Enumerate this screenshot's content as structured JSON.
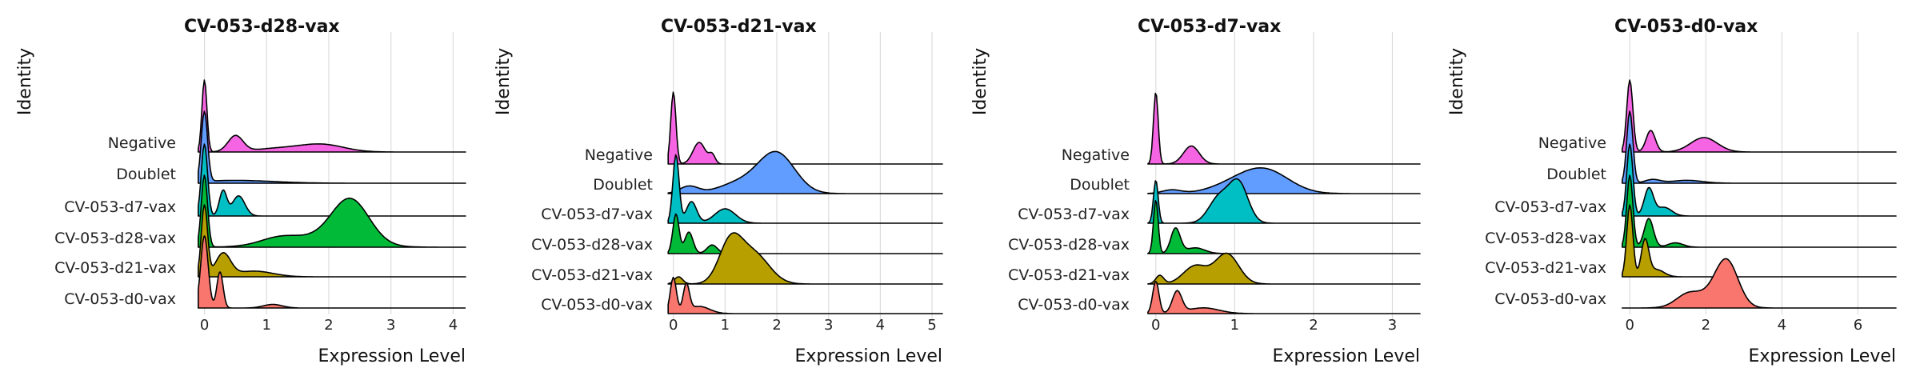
{
  "chart_data": [
    {
      "type": "area",
      "title": "CV-053-d28-vax",
      "ylabel": "Identity",
      "xlabel": "Expression Level",
      "xlim": [
        -0.2,
        4.2
      ],
      "xticks": [
        0,
        1,
        2,
        3,
        4
      ],
      "grid": true,
      "legend": "none",
      "categories": [
        "CV-053-d0-vax",
        "CV-053-d21-vax",
        "CV-053-d28-vax",
        "CV-053-d7-vax",
        "Doublet",
        "Negative"
      ],
      "colors": [
        "#F8766D",
        "#B79F00",
        "#00BA38",
        "#00BFC4",
        "#619CFF",
        "#F564E3"
      ],
      "series": [
        {
          "name": "CV-053-d0-vax",
          "peaks": [
            [
              0.0,
              0.06,
              1.0
            ],
            [
              0.25,
              0.05,
              0.5
            ],
            [
              1.1,
              0.15,
              0.05
            ]
          ],
          "range": [
            -0.1,
            1.5
          ]
        },
        {
          "name": "CV-053-d21-vax",
          "peaks": [
            [
              0.0,
              0.05,
              1.0
            ],
            [
              0.3,
              0.12,
              0.32
            ],
            [
              0.8,
              0.3,
              0.08
            ]
          ],
          "range": [
            -0.1,
            4.2
          ]
        },
        {
          "name": "CV-053-d28-vax",
          "peaks": [
            [
              0.0,
              0.05,
              1.0
            ],
            [
              1.2,
              0.3,
              0.08
            ],
            [
              2.35,
              0.3,
              0.6
            ],
            [
              1.8,
              0.6,
              0.12
            ]
          ],
          "range": [
            -0.1,
            4.2
          ]
        },
        {
          "name": "CV-053-d7-vax",
          "peaks": [
            [
              0.0,
              0.05,
              1.0
            ],
            [
              0.3,
              0.06,
              0.35
            ],
            [
              0.55,
              0.1,
              0.28
            ]
          ],
          "range": [
            -0.1,
            4.2
          ]
        },
        {
          "name": "Doublet",
          "peaks": [
            [
              0.0,
              0.05,
              1.0
            ],
            [
              0.5,
              0.6,
              0.04
            ]
          ],
          "range": [
            -0.1,
            4.2
          ]
        },
        {
          "name": "Negative",
          "peaks": [
            [
              0.0,
              0.04,
              1.0
            ],
            [
              0.5,
              0.12,
              0.22
            ],
            [
              1.9,
              0.35,
              0.1
            ],
            [
              1.2,
              0.4,
              0.05
            ]
          ],
          "range": [
            -0.1,
            4.2
          ]
        }
      ]
    },
    {
      "type": "area",
      "title": "CV-053-d21-vax",
      "ylabel": "Identity",
      "xlabel": "Expression Level",
      "xlim": [
        -0.15,
        5.2
      ],
      "xticks": [
        0,
        1,
        2,
        3,
        4,
        5
      ],
      "grid": true,
      "legend": "none",
      "categories": [
        "CV-053-d0-vax",
        "CV-053-d21-vax",
        "CV-053-d28-vax",
        "CV-053-d7-vax",
        "Doublet",
        "Negative"
      ],
      "colors": [
        "#F8766D",
        "#B79F00",
        "#00BA38",
        "#00BFC4",
        "#619CFF",
        "#F564E3"
      ],
      "series": [
        {
          "name": "CV-053-d0-vax",
          "peaks": [
            [
              0.0,
              0.06,
              0.5
            ],
            [
              0.25,
              0.06,
              0.38
            ],
            [
              0.5,
              0.2,
              0.1
            ]
          ],
          "range": [
            -0.1,
            5.2
          ]
        },
        {
          "name": "CV-053-d21-vax",
          "peaks": [
            [
              0.1,
              0.08,
              0.1
            ],
            [
              1.1,
              0.22,
              0.55
            ],
            [
              1.55,
              0.3,
              0.42
            ]
          ],
          "range": [
            -0.1,
            5.2
          ]
        },
        {
          "name": "CV-053-d28-vax",
          "peaks": [
            [
              0.05,
              0.06,
              0.55
            ],
            [
              0.3,
              0.08,
              0.3
            ],
            [
              0.75,
              0.1,
              0.12
            ]
          ],
          "range": [
            -0.1,
            5.2
          ]
        },
        {
          "name": "CV-053-d7-vax",
          "peaks": [
            [
              0.05,
              0.06,
              0.95
            ],
            [
              0.35,
              0.1,
              0.3
            ],
            [
              1.0,
              0.2,
              0.2
            ]
          ],
          "range": [
            -0.1,
            5.2
          ]
        },
        {
          "name": "Doublet",
          "peaks": [
            [
              0.3,
              0.18,
              0.1
            ],
            [
              2.0,
              0.35,
              0.55
            ],
            [
              1.3,
              0.4,
              0.15
            ]
          ],
          "range": [
            -0.1,
            5.2
          ]
        },
        {
          "name": "Negative",
          "peaks": [
            [
              0.0,
              0.05,
              1.0
            ],
            [
              0.5,
              0.12,
              0.3
            ],
            [
              0.75,
              0.06,
              0.12
            ]
          ],
          "range": [
            -0.1,
            5.2
          ]
        }
      ]
    },
    {
      "type": "area",
      "title": "CV-053-d7-vax",
      "ylabel": "Identity",
      "xlabel": "Expression Level",
      "xlim": [
        -0.15,
        3.35
      ],
      "xticks": [
        0,
        1,
        2,
        3
      ],
      "grid": true,
      "legend": "none",
      "categories": [
        "CV-053-d0-vax",
        "CV-053-d21-vax",
        "CV-053-d28-vax",
        "CV-053-d7-vax",
        "Doublet",
        "Negative"
      ],
      "colors": [
        "#F8766D",
        "#B79F00",
        "#00BA38",
        "#00BFC4",
        "#619CFF",
        "#F564E3"
      ],
      "series": [
        {
          "name": "CV-053-d0-vax",
          "peaks": [
            [
              0.0,
              0.04,
              0.45
            ],
            [
              0.27,
              0.06,
              0.3
            ],
            [
              0.6,
              0.2,
              0.08
            ]
          ],
          "range": [
            -0.1,
            3.35
          ]
        },
        {
          "name": "CV-053-d21-vax",
          "peaks": [
            [
              0.05,
              0.05,
              0.12
            ],
            [
              0.5,
              0.15,
              0.25
            ],
            [
              0.9,
              0.15,
              0.42
            ]
          ],
          "range": [
            -0.1,
            3.35
          ]
        },
        {
          "name": "CV-053-d28-vax",
          "peaks": [
            [
              0.0,
              0.03,
              0.75
            ],
            [
              0.25,
              0.06,
              0.35
            ],
            [
              0.5,
              0.12,
              0.08
            ]
          ],
          "range": [
            -0.1,
            3.35
          ]
        },
        {
          "name": "CV-053-d7-vax",
          "peaks": [
            [
              0.0,
              0.03,
              0.6
            ],
            [
              0.8,
              0.13,
              0.35
            ],
            [
              1.05,
              0.12,
              0.55
            ]
          ],
          "range": [
            -0.1,
            3.35
          ]
        },
        {
          "name": "Doublet",
          "peaks": [
            [
              0.2,
              0.12,
              0.05
            ],
            [
              1.4,
              0.3,
              0.3
            ],
            [
              1.0,
              0.3,
              0.12
            ]
          ],
          "range": [
            -0.1,
            3.35
          ]
        },
        {
          "name": "Negative",
          "peaks": [
            [
              0.0,
              0.03,
              1.0
            ],
            [
              0.45,
              0.1,
              0.25
            ]
          ],
          "range": [
            -0.1,
            3.35
          ]
        }
      ]
    },
    {
      "type": "area",
      "title": "CV-053-d0-vax",
      "ylabel": "Identity",
      "xlabel": "Expression Level",
      "xlim": [
        -0.3,
        7.0
      ],
      "xticks": [
        0,
        2,
        4,
        6
      ],
      "grid": true,
      "legend": "none",
      "categories": [
        "CV-053-d0-vax",
        "CV-053-d21-vax",
        "CV-053-d28-vax",
        "CV-053-d7-vax",
        "Doublet",
        "Negative"
      ],
      "colors": [
        "#F8766D",
        "#B79F00",
        "#00BA38",
        "#00BFC4",
        "#619CFF",
        "#F564E3"
      ],
      "series": [
        {
          "name": "CV-053-d0-vax",
          "peaks": [
            [
              1.5,
              0.3,
              0.12
            ],
            [
              2.55,
              0.3,
              0.6
            ],
            [
              2.0,
              0.5,
              0.15
            ]
          ],
          "range": [
            -0.2,
            7.0
          ]
        },
        {
          "name": "CV-053-d21-vax",
          "peaks": [
            [
              0.0,
              0.08,
              1.0
            ],
            [
              0.4,
              0.1,
              0.5
            ],
            [
              0.7,
              0.2,
              0.1
            ]
          ],
          "range": [
            -0.2,
            7.0
          ]
        },
        {
          "name": "CV-053-d28-vax",
          "peaks": [
            [
              0.0,
              0.08,
              1.0
            ],
            [
              0.5,
              0.12,
              0.4
            ],
            [
              1.2,
              0.2,
              0.06
            ]
          ],
          "range": [
            -0.2,
            7.0
          ]
        },
        {
          "name": "CV-053-d7-vax",
          "peaks": [
            [
              0.0,
              0.08,
              1.0
            ],
            [
              0.5,
              0.12,
              0.38
            ],
            [
              0.9,
              0.2,
              0.12
            ]
          ],
          "range": [
            -0.2,
            7.0
          ]
        },
        {
          "name": "Doublet",
          "peaks": [
            [
              0.0,
              0.08,
              1.0
            ],
            [
              0.6,
              0.2,
              0.05
            ],
            [
              1.5,
              0.4,
              0.04
            ]
          ],
          "range": [
            -0.2,
            7.0
          ]
        },
        {
          "name": "Negative",
          "peaks": [
            [
              0.0,
              0.08,
              1.0
            ],
            [
              0.55,
              0.12,
              0.3
            ],
            [
              1.95,
              0.35,
              0.2
            ]
          ],
          "range": [
            -0.2,
            7.0
          ]
        }
      ]
    }
  ]
}
